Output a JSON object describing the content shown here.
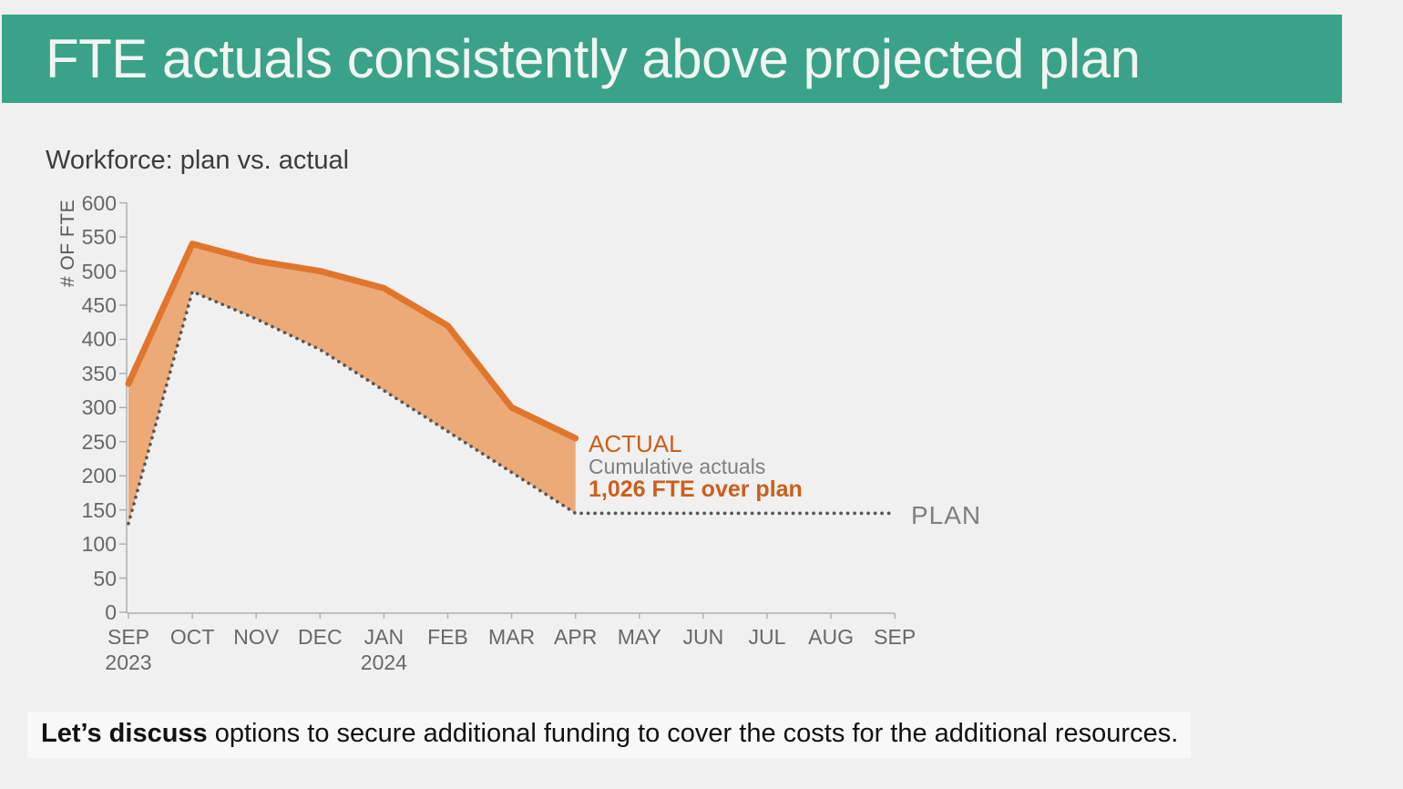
{
  "header": {
    "title": "FTE actuals consistently above projected plan"
  },
  "chart": {
    "title": "Workforce: plan vs. actual",
    "y_axis_label": "# OF FTE",
    "annotations": {
      "actual_label": "ACTUAL",
      "cumulative_line1": "Cumulative actuals",
      "cumulative_line2": "1,026 FTE over plan",
      "plan_label": "PLAN"
    }
  },
  "chart_data": {
    "type": "area",
    "title": "Workforce: plan vs. actual",
    "xlabel": "",
    "ylabel": "# OF FTE",
    "ylim": [
      0,
      600
    ],
    "ytick_step": 50,
    "grid": false,
    "legend_position": "inline-annotations",
    "x": [
      "SEP",
      "OCT",
      "NOV",
      "DEC",
      "JAN",
      "FEB",
      "MAR",
      "APR",
      "MAY",
      "JUN",
      "JUL",
      "AUG",
      "SEP"
    ],
    "year_labels": [
      {
        "index": 0,
        "label": "2023"
      },
      {
        "index": 4,
        "label": "2024"
      }
    ],
    "series": [
      {
        "name": "ACTUAL",
        "style": "solid",
        "color_var": "actual-line",
        "values": [
          335,
          540,
          515,
          500,
          475,
          420,
          300,
          255
        ]
      },
      {
        "name": "PLAN",
        "style": "dotted",
        "color_var": "plan-dot",
        "values": [
          130,
          470,
          430,
          385,
          325,
          265,
          205,
          145,
          145,
          145,
          145,
          145,
          145
        ]
      }
    ],
    "fill_between": {
      "between": [
        "ACTUAL",
        "PLAN"
      ],
      "color_var": "actual-fill"
    },
    "annotation_over_plan_total": "1,026 FTE over plan"
  },
  "footer": {
    "bold": "Let’s discuss",
    "rest": " options to secure additional funding to cover the costs for the additional resources."
  },
  "colors": {
    "page_bg": "#F0F0F0",
    "header_bg": "#3AA288",
    "header_text": "#F2F4F3",
    "title_text": "#3C3C3C",
    "axis": "#AFAFAF",
    "tick_text": "#686868",
    "actual_line": "#E0752D",
    "actual_fill": "#ECAA78",
    "plan_dot": "#55575B",
    "annot_orange": "#CC5E19",
    "annot_gray": "#7F7F7F",
    "footer_text": "#111111"
  }
}
